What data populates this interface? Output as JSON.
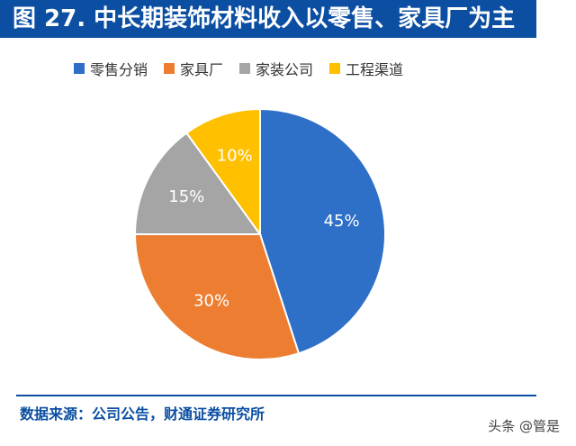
{
  "header": {
    "title": "图 27. 中长期装饰材料收入以零售、家具厂为主"
  },
  "chart_data": {
    "type": "pie",
    "title": "图 27. 中长期装饰材料收入以零售、家具厂为主",
    "legend_placement": "top",
    "slices": [
      {
        "name": "零售分销",
        "value": 45,
        "label": "45%",
        "color": "#2e6fc7"
      },
      {
        "name": "家具厂",
        "value": 30,
        "label": "30%",
        "color": "#ed7d31"
      },
      {
        "name": "家装公司",
        "value": 15,
        "label": "15%",
        "color": "#a5a5a5"
      },
      {
        "name": "工程渠道",
        "value": 10,
        "label": "10%",
        "color": "#ffc000"
      }
    ]
  },
  "footer": {
    "source": "数据来源：公司公告，财通证券研究所",
    "watermark": "头条 @管是"
  }
}
